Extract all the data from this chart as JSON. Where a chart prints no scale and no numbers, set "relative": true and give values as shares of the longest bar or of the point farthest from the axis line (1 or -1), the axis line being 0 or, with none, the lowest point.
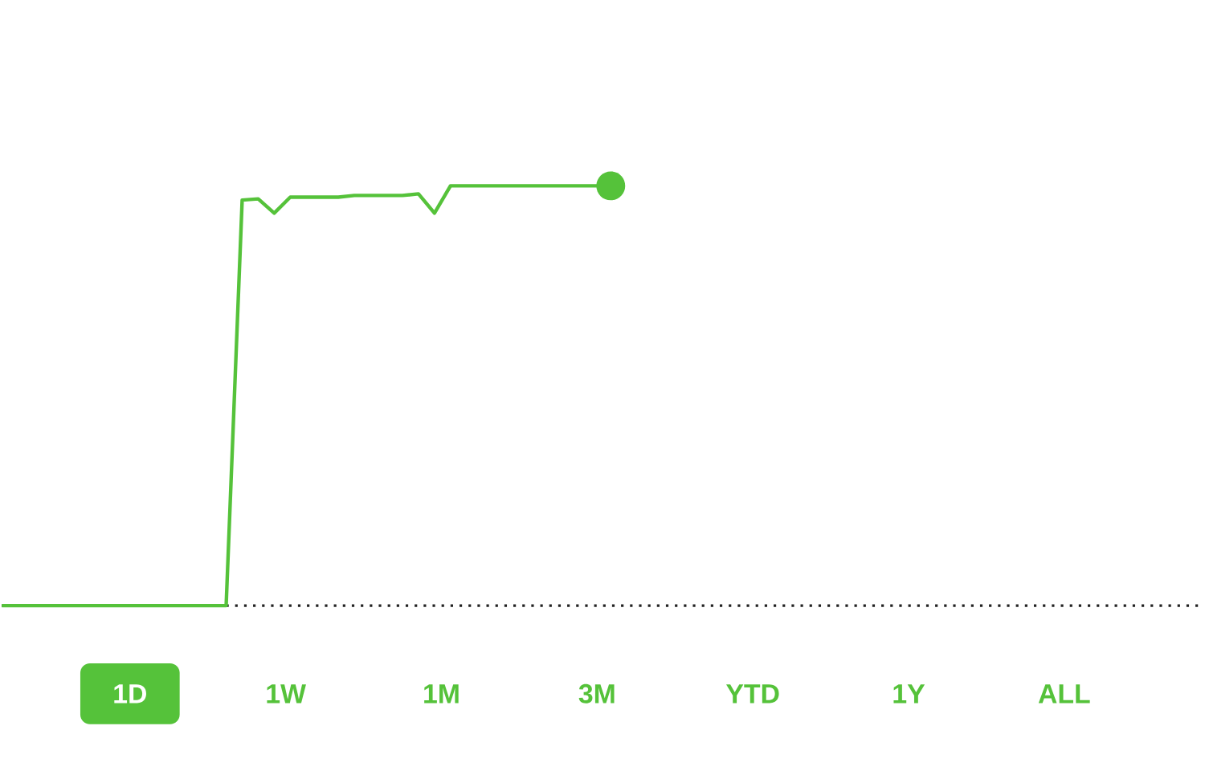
{
  "chart_data": {
    "type": "line",
    "relative": true,
    "color": "#55c23a",
    "categories": [
      null,
      null,
      null,
      null,
      null,
      null,
      null,
      null,
      null,
      null,
      null,
      null,
      null,
      null,
      null,
      null,
      null,
      null,
      null,
      null,
      null,
      null,
      null,
      null,
      null,
      null,
      null,
      null,
      null,
      null,
      null,
      null,
      null,
      null,
      null,
      null,
      null,
      null,
      null,
      null,
      null,
      null,
      null,
      null,
      null,
      null,
      null,
      null,
      null,
      null,
      null,
      null,
      null,
      null,
      null,
      null,
      null,
      null,
      null,
      null,
      null,
      null,
      null,
      null,
      null,
      null,
      null,
      null,
      null,
      null,
      null,
      null,
      null,
      null,
      null,
      null
    ],
    "values": [
      0,
      0,
      0,
      0,
      0,
      0,
      0,
      0,
      0,
      0,
      0,
      0,
      0,
      0,
      0,
      0.966,
      0.969,
      0.935,
      0.973,
      0.973,
      0.973,
      0.973,
      0.977,
      0.977,
      0.977,
      0.977,
      0.981,
      0.935,
      1,
      1,
      1,
      1,
      1,
      1,
      1,
      1,
      1,
      1,
      1,
      null,
      null,
      null,
      null,
      null,
      null,
      null,
      null,
      null,
      null,
      null,
      null,
      null,
      null,
      null,
      null,
      null,
      null,
      null,
      null,
      null,
      null,
      null,
      null,
      null,
      null,
      null,
      null,
      null,
      null,
      null,
      null,
      null,
      null,
      null,
      null,
      null
    ],
    "ref_lines": [
      {
        "axis": "y",
        "value": 0,
        "color": "#222222",
        "line_style": "dotted"
      }
    ],
    "annotations": [
      "1D",
      "1W",
      "1M",
      "3M",
      "YTD",
      "1Y",
      "ALL"
    ]
  }
}
